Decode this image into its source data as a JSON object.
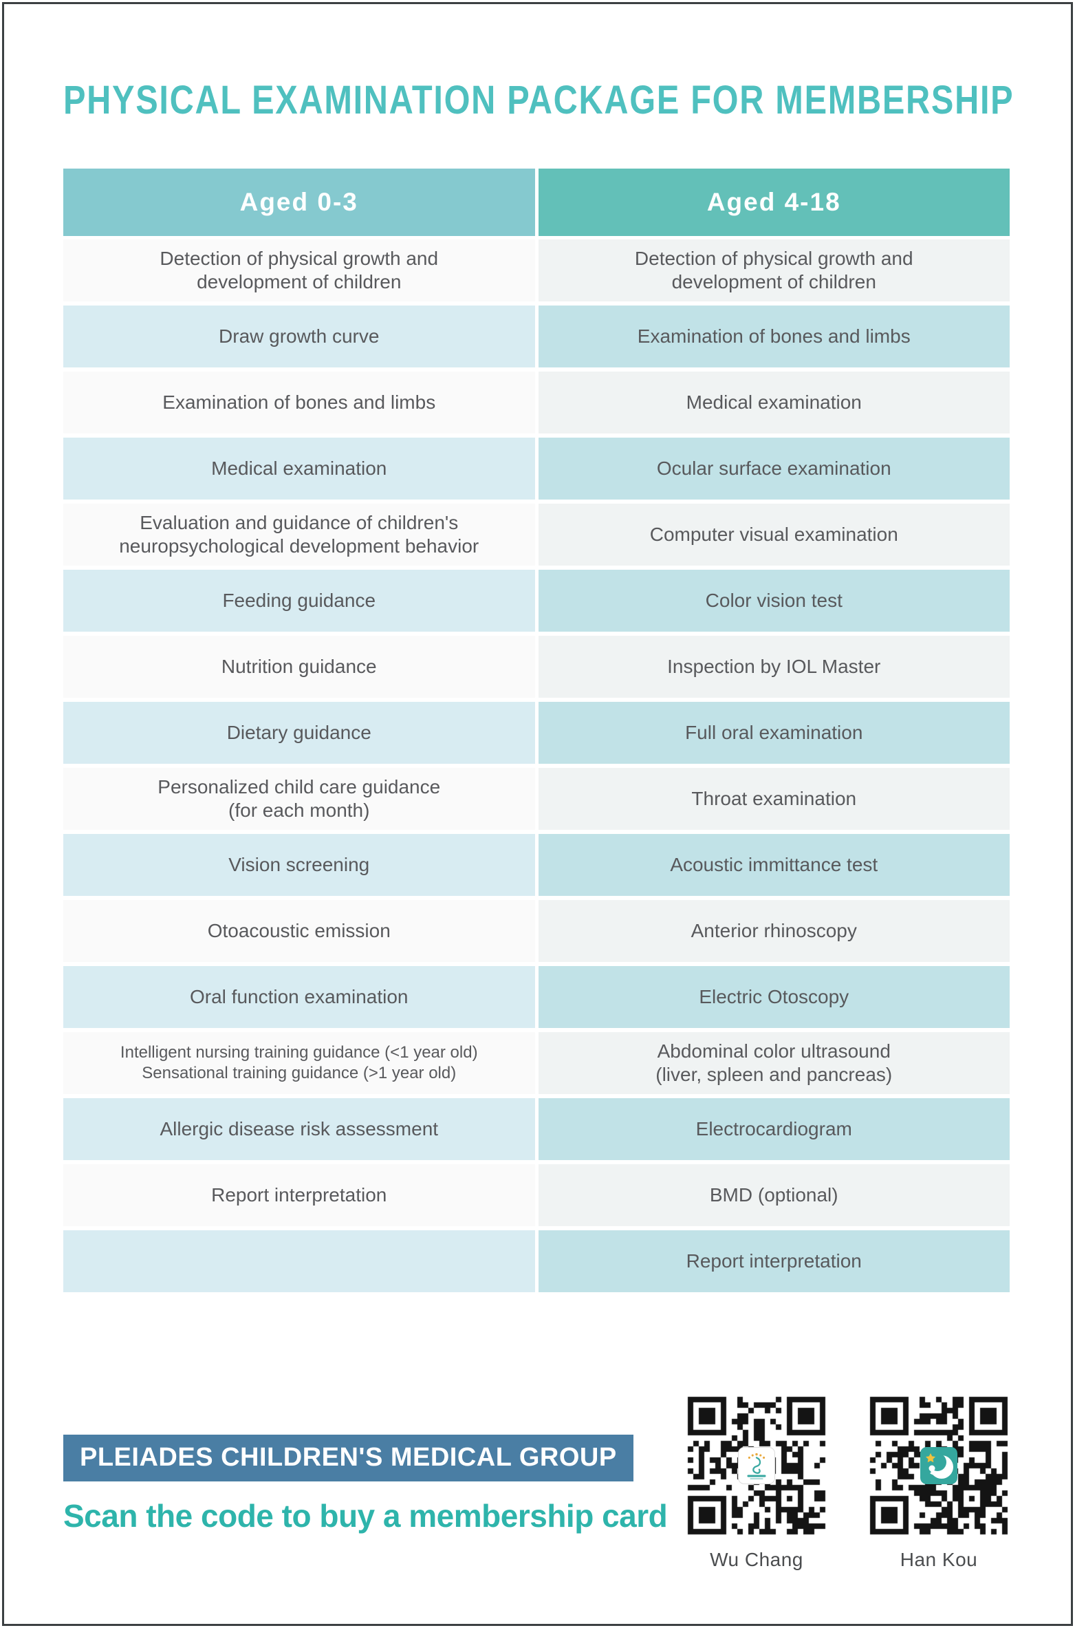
{
  "title": "PHYSICAL EXAMINATION PACKAGE FOR MEMBERSHIP",
  "table": {
    "headers": [
      "Aged 0-3",
      "Aged 4-18"
    ],
    "rows": [
      {
        "left": [
          "Detection of physical growth and",
          "development of children"
        ],
        "right": [
          "Detection of physical growth and",
          "development of children"
        ]
      },
      {
        "left": [
          "Draw growth curve"
        ],
        "right": [
          "Examination of bones and limbs"
        ]
      },
      {
        "left": [
          "Examination of bones and limbs"
        ],
        "right": [
          "Medical examination"
        ]
      },
      {
        "left": [
          "Medical examination"
        ],
        "right": [
          "Ocular surface examination"
        ]
      },
      {
        "left": [
          "Evaluation and guidance of children's",
          "neuropsychological development behavior"
        ],
        "right": [
          "Computer visual examination"
        ]
      },
      {
        "left": [
          "Feeding guidance"
        ],
        "right": [
          "Color vision test"
        ]
      },
      {
        "left": [
          "Nutrition guidance"
        ],
        "right": [
          "Inspection by IOL Master"
        ]
      },
      {
        "left": [
          "Dietary guidance"
        ],
        "right": [
          "Full oral examination"
        ]
      },
      {
        "left": [
          "Personalized child care guidance",
          "(for each month)"
        ],
        "right": [
          "Throat examination"
        ]
      },
      {
        "left": [
          "Vision screening"
        ],
        "right": [
          "Acoustic immittance test"
        ]
      },
      {
        "left": [
          "Otoacoustic emission"
        ],
        "right": [
          "Anterior rhinoscopy"
        ]
      },
      {
        "left": [
          "Oral function examination"
        ],
        "right": [
          "Electric Otoscopy"
        ]
      },
      {
        "left": [
          "Intelligent nursing training guidance (<1 year old)",
          "Sensational training guidance (>1 year old)"
        ],
        "right": [
          "Abdominal color ultrasound",
          "(liver, spleen and pancreas)"
        ]
      },
      {
        "left": [
          "Allergic disease risk assessment"
        ],
        "right": [
          "Electrocardiogram"
        ]
      },
      {
        "left": [
          "Report interpretation"
        ],
        "right": [
          "BMD (optional)"
        ]
      },
      {
        "left": [],
        "right": [
          "Report interpretation"
        ]
      }
    ]
  },
  "footer": {
    "organization": "PLEIADES CHILDREN'S MEDICAL GROUP",
    "cta": "Scan the code to buy a membership card",
    "qr_codes": [
      {
        "label": "Wu Chang"
      },
      {
        "label": "Han Kou"
      }
    ]
  },
  "colors": {
    "title_teal": "#4fc0bf",
    "header_left_teal": "#85c9cf",
    "header_right_teal": "#63c0b8",
    "row_blue_left": "#d8ecf2",
    "row_blue_right": "#c1e2e7",
    "row_gray_left": "#fafafa",
    "row_gray_right": "#f0f3f3",
    "banner_blue": "#4a7ea4",
    "cta_teal": "#2eb4ab",
    "text_dark": "#58595c"
  }
}
